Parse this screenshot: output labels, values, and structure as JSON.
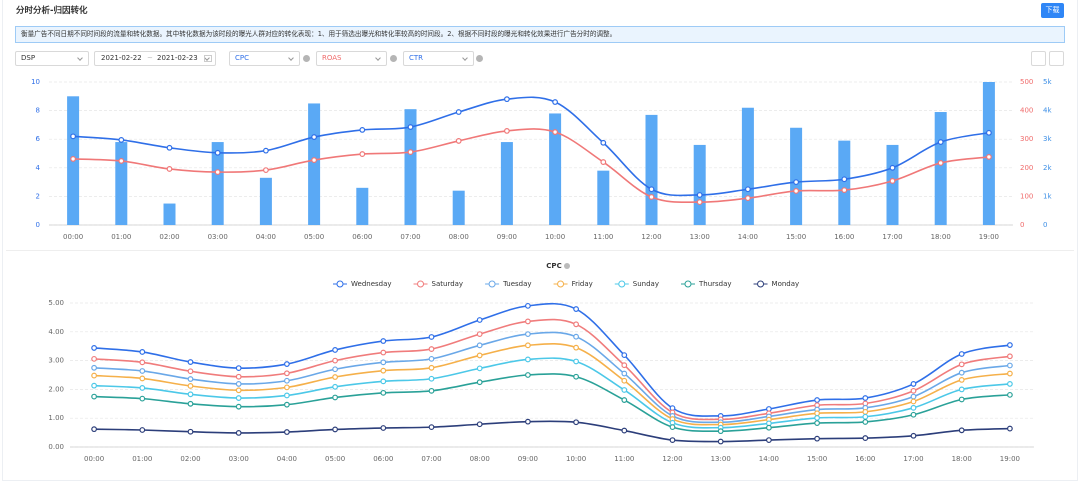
{
  "header": {
    "title": "分时分析-归因转化",
    "button": "下载"
  },
  "info": "衡量广告不同日期不同时间段的流量和转化数据。其中转化数据为该时段的曝光人群对应的转化表现：1、用于筛选出曝光和转化率较高的时间段。2、根据不同时段的曝光和转化效果进行广告分时的调整。",
  "filters": {
    "channel": "DSP",
    "start_date": "2021-02-22",
    "date_separator": "~",
    "end_date": "2021-02-23",
    "metric_1": "CPC",
    "metric_2": "ROAS",
    "metric_3": "CTR"
  },
  "chart_data": [
    {
      "type": "combo",
      "grid": true,
      "categories": [
        "00:00",
        "01:00",
        "02:00",
        "03:00",
        "04:00",
        "05:00",
        "06:00",
        "07:00",
        "08:00",
        "09:00",
        "10:00",
        "11:00",
        "12:00",
        "13:00",
        "14:00",
        "15:00",
        "16:00",
        "17:00",
        "18:00",
        "19:00"
      ],
      "ylim": [
        0,
        10
      ],
      "yticks": [
        0,
        2,
        4,
        6,
        8,
        10
      ],
      "y2lim": [
        0,
        500
      ],
      "y2ticks": [
        0,
        100,
        200,
        300,
        400,
        500
      ],
      "y3lim": [
        0,
        5000
      ],
      "y3ticks": [
        0,
        {
          "value": 1000,
          "label": "1k"
        },
        {
          "value": 2000,
          "label": "2k"
        },
        {
          "value": 3000,
          "label": "3k"
        },
        {
          "value": 4000,
          "label": "4k"
        },
        {
          "value": 5000,
          "label": "5k"
        }
      ],
      "axis_colors": {
        "y": "#2f6fe8",
        "y2": "#f06b6b",
        "y3": "#3d8fe6"
      },
      "series": [
        {
          "type": "bar",
          "axis": "y3",
          "color": "#5aa9f5",
          "values": [
            4500,
            2900,
            750,
            2900,
            1650,
            4250,
            1300,
            4050,
            1200,
            2900,
            3900,
            1900,
            3850,
            2800,
            4100,
            3400,
            2950,
            2800,
            3950,
            5000
          ]
        },
        {
          "type": "line",
          "axis": "y",
          "color": "#2f6fe8",
          "values": [
            6.2,
            5.95,
            5.4,
            5.05,
            5.2,
            6.15,
            6.65,
            6.85,
            7.9,
            8.8,
            8.6,
            5.75,
            2.5,
            2.1,
            2.5,
            3.0,
            3.2,
            4.0,
            5.8,
            6.45
          ]
        },
        {
          "type": "line",
          "axis": "y2",
          "color": "#f07878",
          "values": [
            231,
            224,
            196,
            185,
            192,
            227,
            248,
            255,
            294,
            329,
            325,
            220,
            98,
            80,
            94,
            119,
            122,
            154,
            217,
            238
          ]
        }
      ]
    },
    {
      "type": "line",
      "title": "CPC",
      "grid": true,
      "legend": "top",
      "categories": [
        "00:00",
        "01:00",
        "02:00",
        "03:00",
        "04:00",
        "05:00",
        "06:00",
        "07:00",
        "08:00",
        "09:00",
        "10:00",
        "11:00",
        "12:00",
        "13:00",
        "14:00",
        "15:00",
        "16:00",
        "17:00",
        "18:00",
        "19:00"
      ],
      "ylim": [
        0,
        5
      ],
      "yticks": [
        {
          "value": 0,
          "label": "0.00"
        },
        {
          "value": 1,
          "label": "1.00"
        },
        {
          "value": 2,
          "label": "2.00"
        },
        {
          "value": 3,
          "label": "3.00"
        },
        {
          "value": 4,
          "label": "4.00"
        },
        {
          "value": 5,
          "label": "5.00"
        }
      ],
      "series": [
        {
          "name": "Wednesday",
          "color": "#2f6fe8",
          "values": [
            3.44,
            3.3,
            2.95,
            2.74,
            2.88,
            3.37,
            3.68,
            3.82,
            4.41,
            4.9,
            4.79,
            3.19,
            1.35,
            1.08,
            1.32,
            1.63,
            1.7,
            2.19,
            3.23,
            3.54
          ]
        },
        {
          "name": "Saturday",
          "color": "#f07c7c",
          "values": [
            3.06,
            2.94,
            2.63,
            2.44,
            2.56,
            3.0,
            3.28,
            3.4,
            3.92,
            4.36,
            4.26,
            2.84,
            1.2,
            0.96,
            1.17,
            1.45,
            1.51,
            1.95,
            2.87,
            3.15
          ]
        },
        {
          "name": "Tuesday",
          "color": "#6aa8e8",
          "values": [
            2.75,
            2.64,
            2.36,
            2.19,
            2.3,
            2.7,
            2.94,
            3.06,
            3.53,
            3.92,
            3.83,
            2.55,
            1.08,
            0.86,
            1.06,
            1.3,
            1.36,
            1.75,
            2.58,
            2.83
          ]
        },
        {
          "name": "Friday",
          "color": "#f5b04a",
          "values": [
            2.48,
            2.38,
            2.12,
            1.97,
            2.07,
            2.43,
            2.65,
            2.75,
            3.18,
            3.53,
            3.45,
            2.3,
            0.97,
            0.78,
            0.95,
            1.17,
            1.22,
            1.58,
            2.33,
            2.55
          ]
        },
        {
          "name": "Sunday",
          "color": "#4cc8e8",
          "values": [
            2.13,
            2.05,
            1.83,
            1.7,
            1.79,
            2.09,
            2.28,
            2.37,
            2.73,
            3.04,
            2.97,
            1.98,
            0.84,
            0.67,
            0.82,
            1.01,
            1.05,
            1.36,
            2.0,
            2.19
          ]
        },
        {
          "name": "Thursday",
          "color": "#2aa198",
          "values": [
            1.75,
            1.68,
            1.5,
            1.4,
            1.47,
            1.72,
            1.88,
            1.95,
            2.25,
            2.5,
            2.44,
            1.63,
            0.69,
            0.55,
            0.67,
            0.83,
            0.87,
            1.12,
            1.65,
            1.81
          ]
        },
        {
          "name": "Monday",
          "color": "#2c3e7a",
          "values": [
            0.62,
            0.59,
            0.53,
            0.49,
            0.52,
            0.61,
            0.66,
            0.69,
            0.79,
            0.88,
            0.86,
            0.57,
            0.24,
            0.19,
            0.24,
            0.29,
            0.31,
            0.39,
            0.58,
            0.64
          ]
        }
      ]
    }
  ]
}
